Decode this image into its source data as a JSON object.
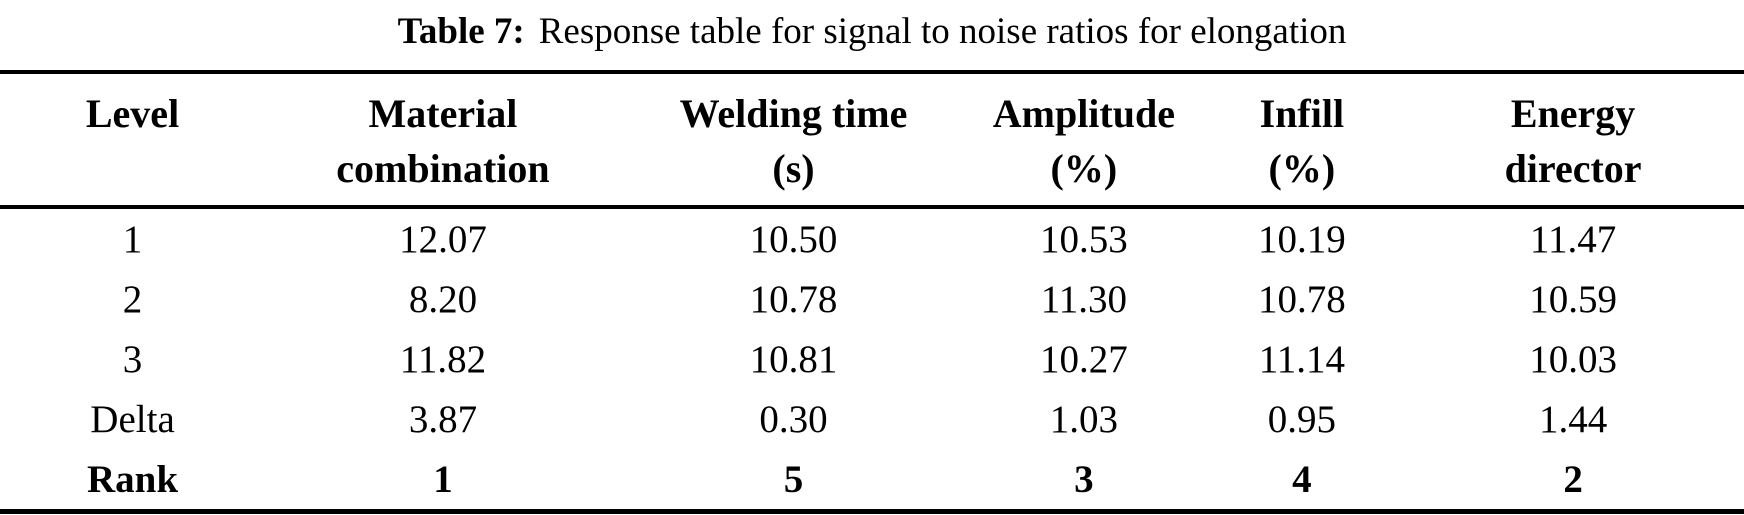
{
  "caption": {
    "label": "Table 7:",
    "text": "Response table for signal to noise ratios for elongation"
  },
  "table": {
    "headers": [
      {
        "line1": "Level",
        "line2": ""
      },
      {
        "line1": "Material",
        "line2": "combination"
      },
      {
        "line1": "Welding time",
        "line2": "(s)"
      },
      {
        "line1": "Amplitude",
        "line2": "(%)"
      },
      {
        "line1": "Infill",
        "line2": "(%)"
      },
      {
        "line1": "Energy",
        "line2": "director"
      }
    ],
    "rows": [
      {
        "label": "1",
        "values": [
          "12.07",
          "10.50",
          "10.53",
          "10.19",
          "11.47"
        ],
        "emphasis": "normal"
      },
      {
        "label": "2",
        "values": [
          "8.20",
          "10.78",
          "11.30",
          "10.78",
          "10.59"
        ],
        "emphasis": "normal"
      },
      {
        "label": "3",
        "values": [
          "11.82",
          "10.81",
          "10.27",
          "11.14",
          "10.03"
        ],
        "emphasis": "normal"
      },
      {
        "label": "Delta",
        "values": [
          "3.87",
          "0.30",
          "1.03",
          "0.95",
          "1.44"
        ],
        "emphasis": "normal"
      },
      {
        "label": "Rank",
        "values": [
          "1",
          "5",
          "3",
          "4",
          "2"
        ],
        "emphasis": "bold"
      }
    ],
    "colors": {
      "text": "#000000",
      "rule": "#000000",
      "background": "#ffffff"
    }
  }
}
